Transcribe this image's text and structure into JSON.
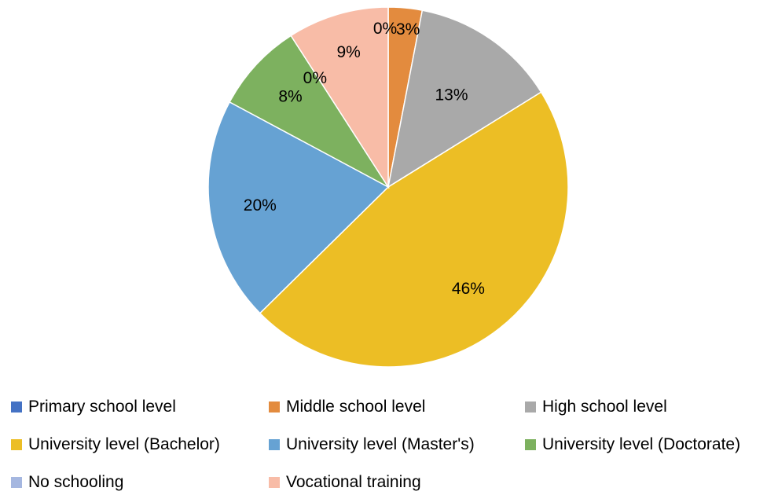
{
  "chart_data": {
    "type": "pie",
    "title": "",
    "legend_position": "bottom",
    "slices": [
      {
        "name": "Primary school level",
        "value": 0,
        "label": "0%",
        "color": "#4472C4"
      },
      {
        "name": "Middle school level",
        "value": 3,
        "label": "3%",
        "color": "#E38B3E"
      },
      {
        "name": "High school level",
        "value": 13,
        "label": "13%",
        "color": "#A9A9A9"
      },
      {
        "name": "University level (Bachelor)",
        "value": 46,
        "label": "46%",
        "color": "#ECBE25"
      },
      {
        "name": "University level (Master's)",
        "value": 20,
        "label": "20%",
        "color": "#66A2D3"
      },
      {
        "name": "University level (Doctorate)",
        "value": 8,
        "label": "8%",
        "color": "#7DB15F"
      },
      {
        "name": "No schooling",
        "value": 0,
        "label": "0%",
        "color": "#A5B7E0"
      },
      {
        "name": "Vocational training",
        "value": 9,
        "label": "9%",
        "color": "#F8BCA7"
      }
    ]
  }
}
